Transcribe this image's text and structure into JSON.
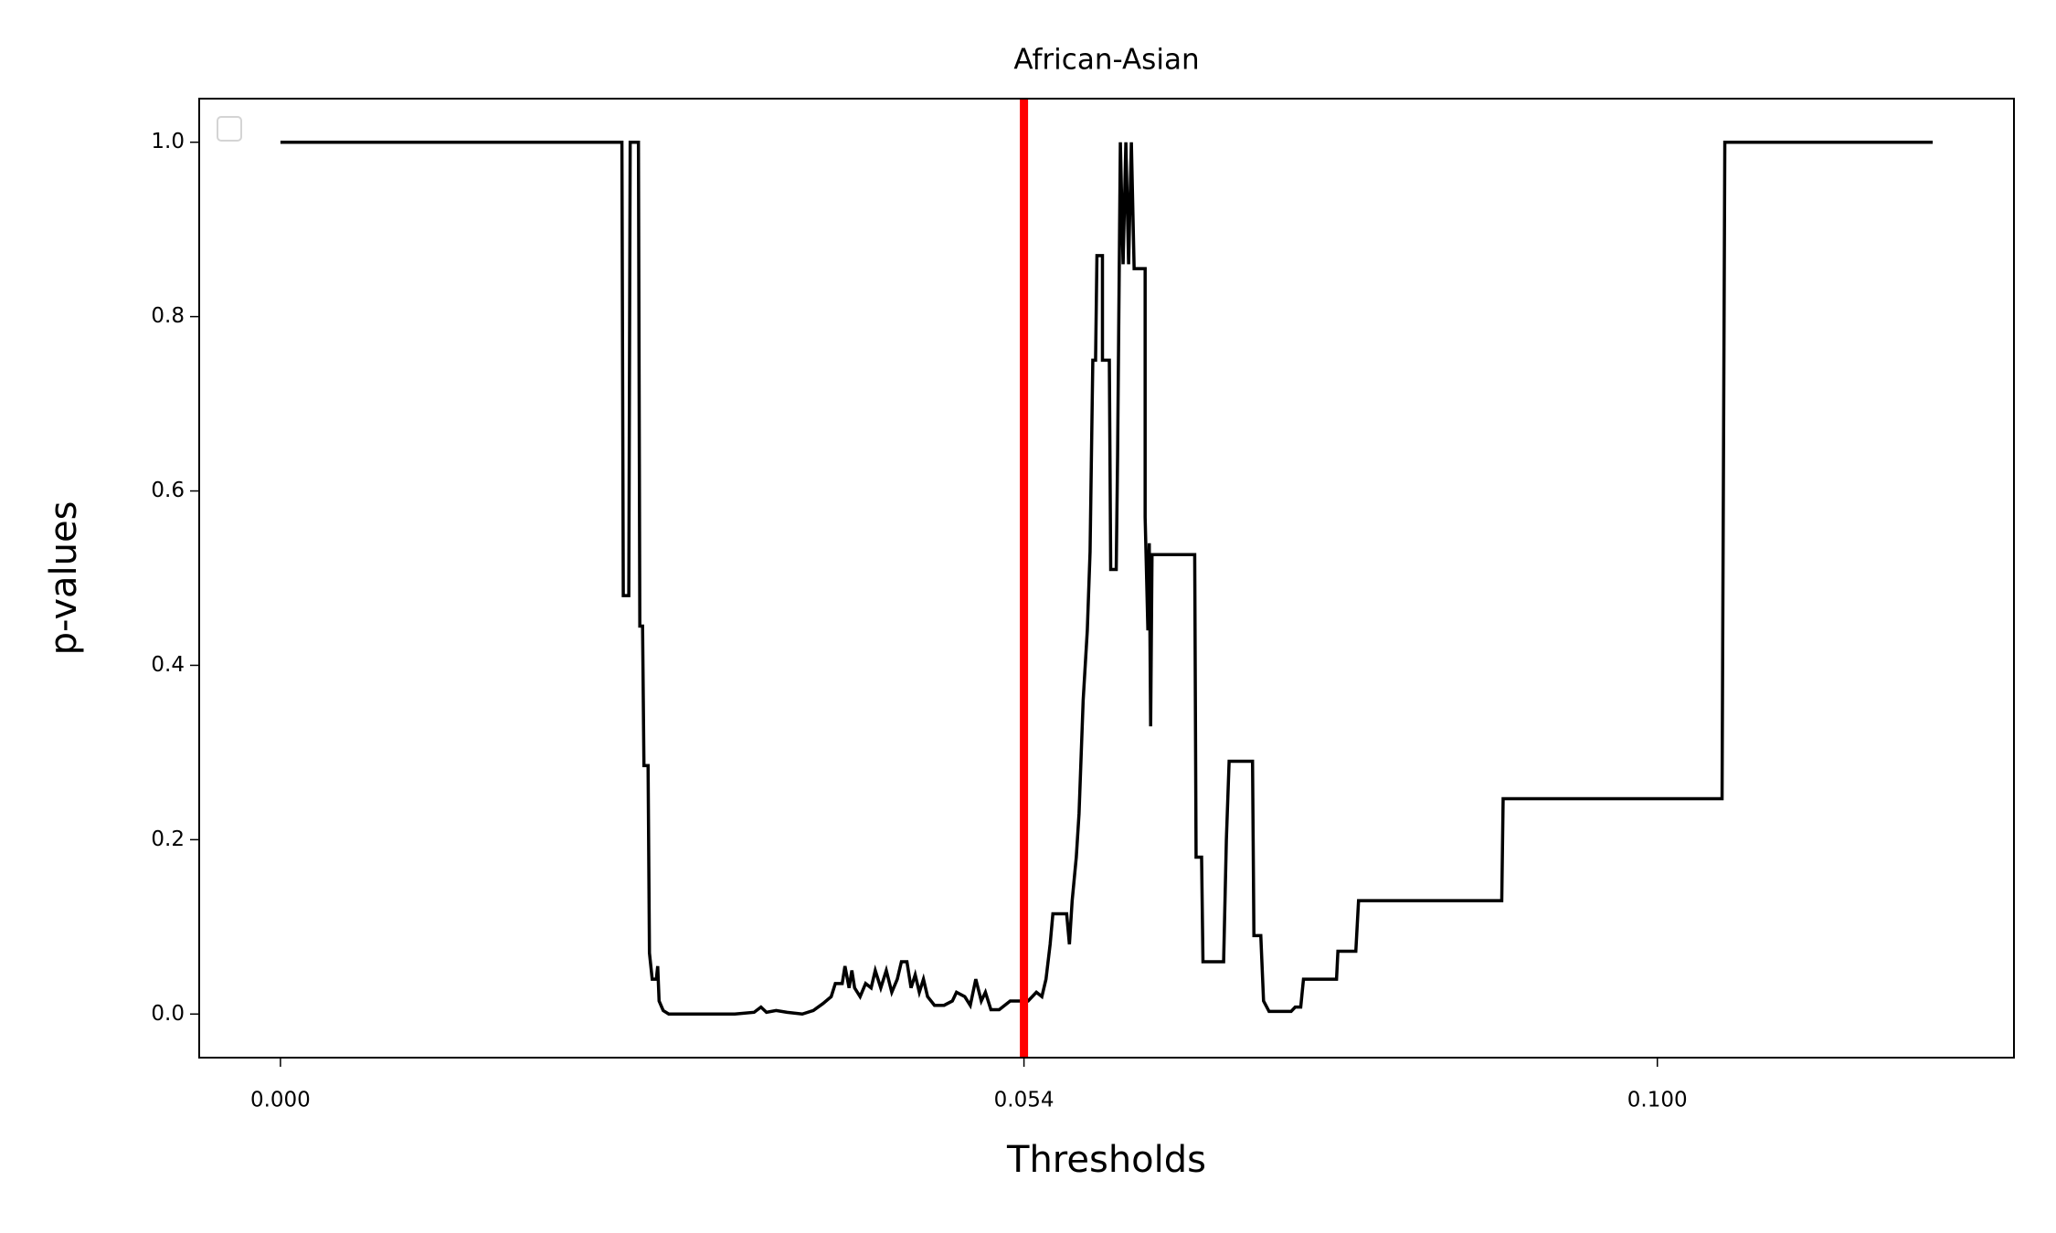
{
  "chart_data": {
    "type": "line",
    "title": "African-Asian",
    "xlabel": "Thresholds",
    "ylabel": "p-values",
    "xlim": [
      -0.0059,
      0.1259
    ],
    "ylim": [
      -0.05,
      1.05
    ],
    "xticks": [
      {
        "value": 0,
        "label": "0.000"
      },
      {
        "value": 0.054,
        "label": "0.054"
      },
      {
        "value": 0.1,
        "label": "0.100"
      }
    ],
    "yticks": [
      {
        "value": 0,
        "label": "0.0"
      },
      0.2,
      0.4,
      0.6,
      0.8,
      {
        "value": 1,
        "label": "1.0"
      }
    ],
    "legend": "upper left",
    "threshold_line": {
      "x": 0.054,
      "color": "#ff0000"
    },
    "x": [
      0,
      0.0248,
      0.0249,
      0.0253,
      0.0254,
      0.026,
      0.0261,
      0.0263,
      0.0264,
      0.0267,
      0.0268,
      0.027,
      0.0273,
      0.0274,
      0.0275,
      0.0278,
      0.0282,
      0.033,
      0.0344,
      0.0349,
      0.0353,
      0.036,
      0.0368,
      0.0379,
      0.0387,
      0.0394,
      0.04,
      0.0403,
      0.0408,
      0.041,
      0.0413,
      0.0415,
      0.0417,
      0.0421,
      0.0425,
      0.0429,
      0.0432,
      0.0436,
      0.044,
      0.0444,
      0.0448,
      0.0451,
      0.0455,
      0.0458,
      0.0461,
      0.0464,
      0.0467,
      0.047,
      0.0475,
      0.0482,
      0.0488,
      0.0491,
      0.0497,
      0.0501,
      0.0505,
      0.0509,
      0.0512,
      0.0516,
      0.0522,
      0.0526,
      0.053,
      0.0543,
      0.0549,
      0.0553,
      0.0556,
      0.0559,
      0.0561,
      0.0571,
      0.0573,
      0.0575,
      0.0578,
      0.058,
      0.0583,
      0.0586,
      0.0588,
      0.059,
      0.0592,
      0.0593,
      0.0597,
      0.0597,
      0.0602,
      0.0603,
      0.0607,
      0.0608,
      0.061,
      0.0612,
      0.0614,
      0.0616,
      0.0618,
      0.062,
      0.0628,
      0.0628,
      0.063,
      0.0631,
      0.0632,
      0.0633,
      0.0664,
      0.0665,
      0.0669,
      0.067,
      0.0685,
      0.0687,
      0.0689,
      0.0706,
      0.0707,
      0.0712,
      0.0714,
      0.0718,
      0.0734,
      0.0737,
      0.0741,
      0.0743,
      0.0767,
      0.0768,
      0.0781,
      0.0783,
      0.0887,
      0.0888,
      0.1047,
      0.1049,
      0.12
    ],
    "series": [
      {
        "color": "#000000",
        "values": [
          1,
          1,
          0.48,
          0.48,
          1,
          1,
          0.445,
          0.445,
          0.285,
          0.285,
          0.07,
          0.04,
          0.04,
          0.055,
          0.015,
          0.004,
          0,
          0,
          0.002,
          0.008,
          0.002,
          0.004,
          0.002,
          0,
          0.004,
          0.012,
          0.02,
          0.035,
          0.035,
          0.055,
          0.03,
          0.05,
          0.03,
          0.02,
          0.035,
          0.03,
          0.05,
          0.03,
          0.05,
          0.025,
          0.04,
          0.06,
          0.06,
          0.03,
          0.045,
          0.025,
          0.04,
          0.02,
          0.01,
          0.01,
          0.015,
          0.025,
          0.02,
          0.01,
          0.04,
          0.015,
          0.025,
          0.005,
          0.005,
          0.01,
          0.015,
          0.015,
          0.025,
          0.02,
          0.04,
          0.08,
          0.115,
          0.115,
          0.08,
          0.13,
          0.18,
          0.23,
          0.36,
          0.44,
          0.53,
          0.75,
          0.75,
          0.87,
          0.87,
          0.75,
          0.75,
          0.51,
          0.51,
          0.64,
          1,
          0.86,
          1,
          0.86,
          1,
          0.855,
          0.855,
          0.57,
          0.44,
          0.54,
          0.33,
          0.527,
          0.527,
          0.18,
          0.18,
          0.06,
          0.06,
          0.2,
          0.29,
          0.29,
          0.09,
          0.09,
          0.015,
          0.003,
          0.003,
          0.008,
          0.008,
          0.04,
          0.04,
          0.072,
          0.072,
          0.13,
          0.13,
          0.247,
          0.247,
          1,
          1
        ]
      }
    ]
  }
}
